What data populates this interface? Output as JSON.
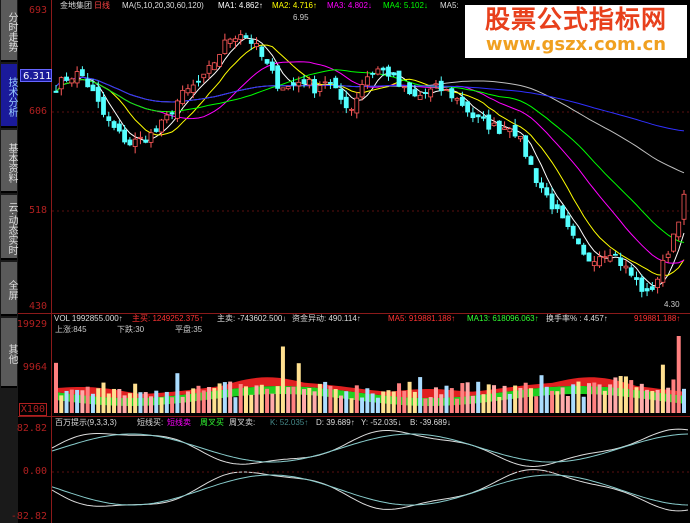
{
  "sidebar": {
    "tabs": [
      {
        "label": "分时走势"
      },
      {
        "label": "技术分析",
        "active": true
      },
      {
        "label": "基本资料"
      },
      {
        "label": "云·动态实时"
      },
      {
        "label": "全屏"
      },
      {
        "label": "其他"
      }
    ]
  },
  "price_axis": {
    "labels": [
      "693",
      "606",
      "518",
      "430"
    ],
    "current": "6.311"
  },
  "volume_axis": {
    "labels": [
      "19929",
      "9964",
      "X100"
    ]
  },
  "indicator_axis": {
    "labels": [
      "82.82",
      "0.00",
      "-82.82"
    ]
  },
  "main_header": {
    "stock": "金地集团",
    "period": "日线",
    "ma_params": "MA(5,10,20,30,60,120)",
    "ma1": "MA1: 4.862↑",
    "ma2": "MA2: 4.716↑",
    "ma3": "MA3: 4.802↓",
    "ma4": "MA4: 5.102↓",
    "ma5": "MA5:"
  },
  "annotations": {
    "high": "6.95",
    "low": "4.30"
  },
  "volume_header": {
    "vol": "VOL 1992855.000↑",
    "buy": "主买: 1249252.375↑",
    "sell": "主卖: -743602.500↓",
    "fund": "资金异动: 490.114↑",
    "ma5": "MA5: 919881.188↑",
    "ma13": "MA13: 618096.063↑",
    "turnover": "换手率% : 4.457↑",
    "extra": "919881.188↑"
  },
  "volume_sub": {
    "up": "上涨:845",
    "down": "下跌:30",
    "flat": "平盘:35"
  },
  "indicator_header": {
    "name": "百万提示(9,3,3,3)",
    "short_buy": "短线买:",
    "short_sell": "短线卖",
    "week_buy": "周叉买",
    "week_sell": "周叉卖:",
    "k": "K: 52.035↑",
    "d": "D: 39.689↑",
    "y": "Y: -52.035↓",
    "b": "B: -39.689↓"
  },
  "watermark": {
    "line1": "股票公式指标网",
    "line2": "www.gszx.com.cn"
  },
  "colors": {
    "up": "#ff5a5a",
    "down": "#54ffff",
    "grid": "#8b1a1a",
    "ma": [
      "#ffffff",
      "#ffff00",
      "#ff00ff",
      "#00ff00",
      "#c0c0c0",
      "#3030ff"
    ]
  },
  "chart_data": {
    "type": "candlestick",
    "ylim": [
      430,
      693
    ],
    "close_keypoints": [
      627,
      636,
      639,
      621,
      599,
      586,
      577,
      581,
      586,
      599,
      617,
      626,
      634,
      652,
      670,
      675,
      666,
      648,
      630,
      626,
      634,
      626,
      634,
      617,
      608,
      634,
      643,
      639,
      626,
      617,
      621,
      626,
      621,
      612,
      599,
      594,
      590,
      594,
      572,
      546,
      528,
      510,
      492,
      474,
      479,
      483,
      470,
      457,
      443,
      461,
      492,
      528
    ]
  }
}
